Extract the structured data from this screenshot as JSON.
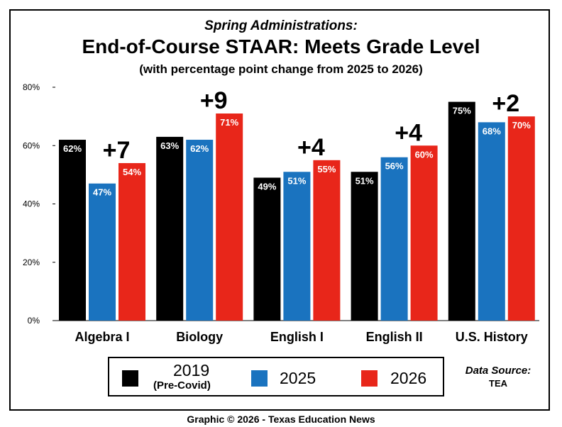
{
  "chart_data": {
    "type": "bar",
    "subtitle": "Spring Administrations:",
    "title": "End-of-Course STAAR: Meets Grade Level",
    "note": "(with percentage point change from 2025 to 2026)",
    "categories": [
      "Algebra I",
      "Biology",
      "English I",
      "English II",
      "U.S. History"
    ],
    "series": [
      {
        "name": "2019",
        "name_detail": "(Pre-Covid)",
        "color": "#000000",
        "values": [
          62,
          63,
          49,
          51,
          75
        ],
        "labels": [
          "62%",
          "63%",
          "49%",
          "51%",
          "75%"
        ]
      },
      {
        "name": "2025",
        "color": "#1a73bf",
        "values": [
          47,
          62,
          51,
          56,
          68
        ],
        "labels": [
          "47%",
          "62%",
          "51%",
          "56%",
          "68%"
        ]
      },
      {
        "name": "2026",
        "color": "#e8261a",
        "values": [
          54,
          71,
          55,
          60,
          70
        ],
        "labels": [
          "54%",
          "71%",
          "55%",
          "60%",
          "70%"
        ]
      }
    ],
    "changes": [
      "+7",
      "+9",
      "+4",
      "+4",
      "+2"
    ],
    "y_ticks": [
      "0%",
      "20%",
      "40%",
      "60%",
      "80%"
    ],
    "ylim": [
      0,
      80
    ],
    "legend_position": "bottom"
  },
  "source": {
    "label": "Data Source:",
    "value": "TEA"
  },
  "footer": "Graphic © 2026 - Texas Education News"
}
